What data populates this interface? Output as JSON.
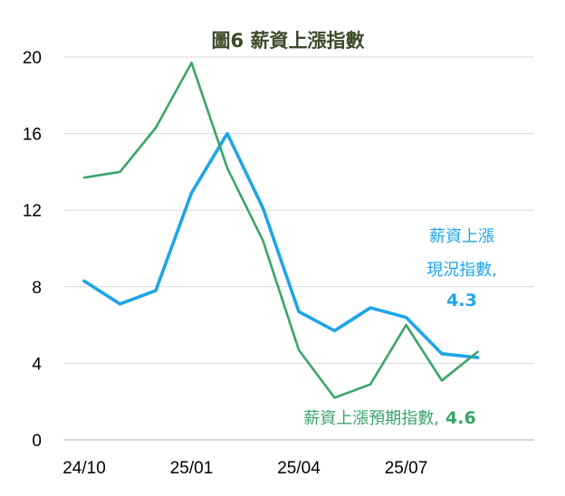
{
  "chart_data": {
    "type": "line",
    "title": "圖6  薪資上漲指數",
    "x": [
      "24/10",
      "24/11",
      "24/12",
      "25/01",
      "25/02",
      "25/03",
      "25/04",
      "25/05",
      "25/06",
      "25/07",
      "25/08",
      "25/09"
    ],
    "x_tick_labels": [
      "24/10",
      "25/01",
      "25/04",
      "25/07"
    ],
    "ylim": [
      0,
      20
    ],
    "y_ticks": [
      "0",
      "4",
      "8",
      "12",
      "16",
      "20"
    ],
    "grid": "horizontal",
    "series": [
      {
        "name": "薪資上漲現況指數",
        "color": "#1fa5e8",
        "values": [
          8.3,
          7.1,
          7.8,
          12.9,
          16.0,
          12.1,
          6.7,
          5.7,
          6.9,
          6.4,
          4.5,
          4.3
        ]
      },
      {
        "name": "薪資上漲預期指數",
        "color": "#3aa56a",
        "values": [
          13.7,
          14.0,
          16.3,
          19.7,
          14.2,
          10.4,
          4.7,
          2.2,
          2.9,
          6.0,
          3.1,
          4.6
        ]
      }
    ],
    "annotations": {
      "current_line1": "薪資上漲",
      "current_line2": "現況指數,",
      "current_value": "4.3",
      "expected_label": "薪資上漲預期指數,",
      "expected_value": "4.6"
    }
  }
}
